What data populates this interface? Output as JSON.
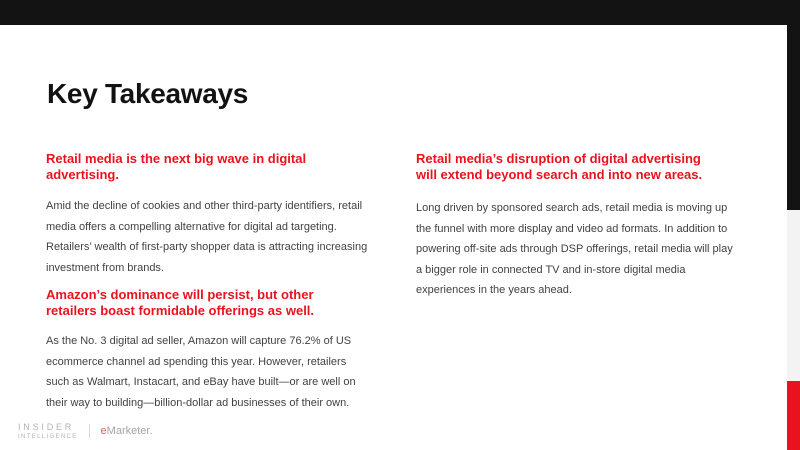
{
  "slide": {
    "title": "Key Takeaways"
  },
  "sections": {
    "left": [
      {
        "heading": "Retail media is the next big wave in digital\nadvertising.",
        "body": "Amid the decline of cookies and other third-party identifiers, retail\nmedia offers a compelling alternative for digital ad targeting.\nRetailers’ wealth of first-party shopper data is attracting increasing\ninvestment from brands."
      },
      {
        "heading": "Amazon’s dominance will persist, but other\nretailers boast formidable offerings as well.",
        "body": "As the No. 3 digital ad seller, Amazon will capture 76.2% of US\necommerce channel ad spending this year. However, retailers\nsuch as Walmart, Instacart, and eBay have built—or are well on\ntheir way to building—billion-dollar ad businesses of their own."
      }
    ],
    "right": [
      {
        "heading": "Retail media’s disruption of digital advertising\nwill extend beyond search and into new areas.",
        "body": "Long driven by sponsored search ads, retail media is moving up\nthe funnel with more display and video ad formats. In addition to\npowering off-site ads through DSP offerings, retail media will play\na bigger role in connected TV and in-store digital media\nexperiences in the years ahead."
      }
    ]
  },
  "footer": {
    "insider_line1": "INSIDER",
    "insider_line2": "INTELLIGENCE",
    "emarketer_e": "e",
    "emarketer_rest": "Marketer",
    "emarketer_period": "."
  },
  "colors": {
    "accent_red": "#e8131c",
    "bar_black": "#131313",
    "strip_gray": "#f3f3f3",
    "body_text": "#424242"
  }
}
